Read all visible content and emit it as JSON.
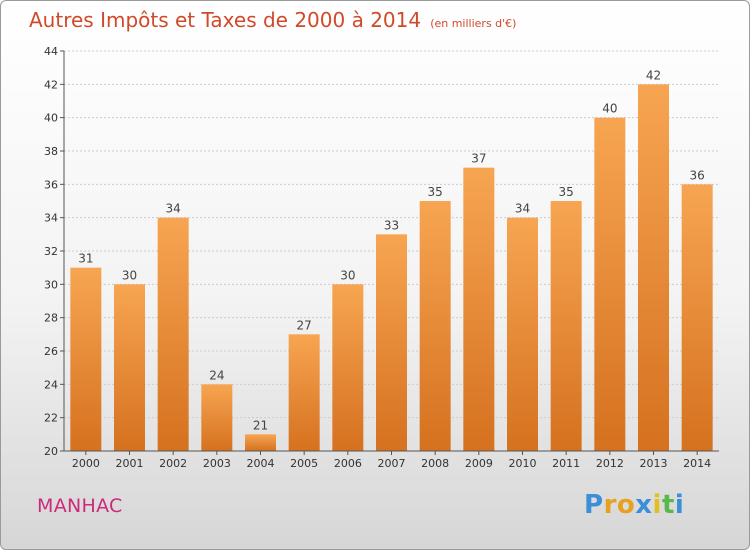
{
  "chart_data": {
    "type": "bar",
    "title": "Autres Impôts et Taxes de 2000 à 2014",
    "subtitle": "(en milliers d'€)",
    "categories": [
      "2000",
      "2001",
      "2002",
      "2003",
      "2004",
      "2005",
      "2006",
      "2007",
      "2008",
      "2009",
      "2010",
      "2011",
      "2012",
      "2013",
      "2014"
    ],
    "values": [
      31,
      30,
      34,
      24,
      21,
      27,
      30,
      33,
      35,
      37,
      34,
      35,
      40,
      42,
      36
    ],
    "ylim": [
      20,
      44
    ],
    "yticks": [
      20,
      22,
      24,
      26,
      28,
      30,
      32,
      34,
      36,
      38,
      40,
      42,
      44
    ],
    "grid": true,
    "bar_color_top": "#f7a552",
    "bar_color_bottom": "#d5711f"
  },
  "location": "MANHAC",
  "logo": {
    "letters": [
      "P",
      "r",
      "o",
      "x",
      "i",
      "t",
      "i"
    ],
    "colors": [
      "#3a8fd8",
      "#e8a020",
      "#e8a020",
      "#3a8fd8",
      "#e0c020",
      "#58b848",
      "#3a8fd8"
    ]
  },
  "colors": {
    "title": "#d04a2a",
    "location": "#cc2a7a",
    "axis": "#555555",
    "grid": "#cccccc"
  }
}
